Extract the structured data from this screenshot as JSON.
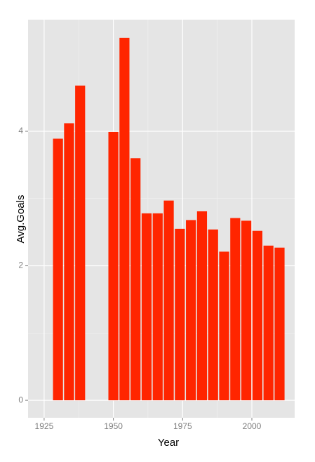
{
  "chart_data": {
    "type": "bar",
    "x": [
      1930,
      1934,
      1938,
      1950,
      1954,
      1958,
      1962,
      1966,
      1970,
      1974,
      1978,
      1982,
      1986,
      1990,
      1994,
      1998,
      2002,
      2006,
      2010
    ],
    "values": [
      3.89,
      4.12,
      4.68,
      3.99,
      5.39,
      3.6,
      2.78,
      2.78,
      2.97,
      2.55,
      2.68,
      2.81,
      2.54,
      2.21,
      2.71,
      2.67,
      2.52,
      2.3,
      2.27
    ],
    "color": "#ff2500",
    "x_label": "Year",
    "y_label": "Avg.Goals",
    "xlim": [
      1919.2,
      2015.45
    ],
    "xticks": [
      1925,
      1950,
      1975,
      2000
    ],
    "ylim": [
      -0.26,
      5.66
    ],
    "yticks": [
      0,
      2,
      4
    ],
    "grid": true
  }
}
